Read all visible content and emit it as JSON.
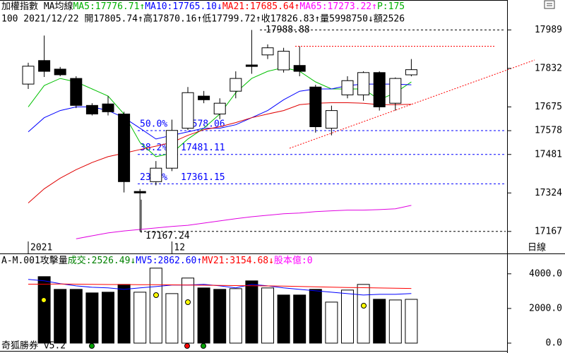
{
  "chart_data": [
    {
      "type": "candlestick",
      "header": [
        {
          "text": "加權指數 MA均線",
          "color": "#000000"
        },
        {
          "text": "MA5:17776.71↑",
          "color": "#00b000"
        },
        {
          "text": "MA10:17765.10↓",
          "color": "#0000ff"
        },
        {
          "text": "MA21:17685.64↑",
          "color": "#ff0000"
        },
        {
          "text": "MA65:17273.22↑",
          "color": "#ff00ff"
        },
        {
          "text": "P:175",
          "color": "#00b000"
        }
      ],
      "info": "100 2021/12/22 開17805.74↑高17870.16↑低17799.72↑收17826.83↑量5998750↓額2526",
      "categories": [
        "2021",
        null,
        null,
        null,
        null,
        null,
        null,
        null,
        null,
        "12",
        null,
        null,
        null,
        null,
        null,
        null,
        null,
        null,
        null,
        null,
        null,
        null,
        null,
        null,
        null
      ],
      "open": [
        17768,
        17864,
        17829,
        17791,
        17681,
        17687,
        17646,
        17330,
        17370,
        17425,
        17588,
        17719,
        17646,
        17739,
        17846,
        17887,
        17826,
        17844,
        17756,
        17588,
        17724,
        17724,
        17815,
        17690,
        17805.74
      ],
      "high": [
        17855,
        17966,
        17838,
        17800,
        17690,
        17719,
        17655,
        17340,
        17454,
        17623,
        17756,
        17740,
        17710,
        17820,
        17988.88,
        17930,
        17916,
        17922,
        17765,
        17680,
        17800,
        17820,
        17820,
        17795,
        17870.16
      ],
      "low": [
        17748,
        17797,
        17800,
        17670,
        17640,
        17640,
        17326,
        17167.24,
        17355,
        17413,
        17580,
        17690,
        17625,
        17710,
        17810,
        17870,
        17815,
        17800,
        17570,
        17559,
        17710,
        17700,
        17660,
        17660,
        17799.72
      ],
      "close": [
        17841,
        17820,
        17806,
        17681,
        17646,
        17655,
        17370,
        17324,
        17425,
        17579,
        17733,
        17704,
        17690,
        17791,
        17840,
        17916,
        17902,
        17820,
        17594,
        17660,
        17782,
        17815,
        17675,
        17791,
        17826.83
      ],
      "up_color": "#ffffff",
      "down_color": "#000000",
      "series": [
        {
          "color": "#00c000",
          "values": [
            17675,
            17762,
            17791,
            17777,
            17748,
            17719,
            17646,
            17530,
            17472,
            17486,
            17544,
            17588,
            17646,
            17733,
            17791,
            17820,
            17835,
            17820,
            17777,
            17748,
            17748,
            17748,
            17704,
            17733,
            17776.71
          ]
        },
        {
          "color": "#0000ff",
          "values": [
            17573,
            17631,
            17660,
            17675,
            17675,
            17660,
            17631,
            17588,
            17544,
            17559,
            17573,
            17588,
            17588,
            17602,
            17631,
            17660,
            17704,
            17739,
            17748,
            17748,
            17762,
            17768,
            17768,
            17768,
            17765.1
          ]
        },
        {
          "color": "#e00000",
          "values": [
            17283,
            17341,
            17384,
            17419,
            17448,
            17472,
            17486,
            17501,
            17515,
            17530,
            17559,
            17582,
            17594,
            17611,
            17631,
            17646,
            17660,
            17684,
            17690,
            17692,
            17692,
            17690,
            17684,
            17684,
            17685.64
          ]
        },
        {
          "color": "#e000e0",
          "values": [
            null,
            null,
            null,
            17137,
            17149,
            17161,
            17169,
            17175,
            17181,
            17187,
            17192,
            17201,
            17210,
            17219,
            17227,
            17233,
            17239,
            17242,
            17248,
            17251,
            17254,
            17254,
            17256,
            17259,
            17273.22
          ]
        }
      ],
      "ylim": [
        17080,
        18111
      ],
      "yticks": [
        17167,
        17324,
        17481,
        17578,
        17675,
        17832,
        17989
      ],
      "extremes": [
        17988.88,
        17167.24
      ],
      "fib": [
        {
          "label": "50.0%",
          "value": 17578.06
        },
        {
          "label": "38.2%",
          "value": 17481.11
        },
        {
          "label": "23.6%",
          "value": 17361.15
        }
      ],
      "fib_color": "#0000ff",
      "period": "日線"
    },
    {
      "type": "bar",
      "header": [
        {
          "text": "A-M.001攻擊量",
          "color": "#000000"
        },
        {
          "text": "成交:2526.49↓",
          "color": "#008000"
        },
        {
          "text": "MV5:2862.60↑",
          "color": "#0000ff"
        },
        {
          "text": "MV21:3154.68↓",
          "color": "#ff0000"
        },
        {
          "text": "股本億:0",
          "color": "#ff00ff"
        }
      ],
      "values": [
        null,
        3837,
        3102,
        3102,
        2898,
        2939,
        3388,
        2939,
        4327,
        2857,
        3755,
        3184,
        3102,
        3143,
        3592,
        3184,
        2776,
        2776,
        3102,
        2367,
        3061,
        3388,
        2531,
        2490,
        2526.49
      ],
      "fills": [
        null,
        "#000000",
        "#000000",
        "#000000",
        "#000000",
        "#000000",
        "#000000",
        "#ffffff",
        "#ffffff",
        "#ffffff",
        "#ffffff",
        "#000000",
        "#000000",
        "#ffffff",
        "#000000",
        "#ffffff",
        "#000000",
        "#000000",
        "#000000",
        "#ffffff",
        "#ffffff",
        "#ffffff",
        "#000000",
        "#ffffff",
        "#ffffff"
      ],
      "series": [
        {
          "color": "#0000ff",
          "values": [
            3673,
            3592,
            3429,
            3306,
            3224,
            3184,
            3102,
            3184,
            3265,
            3347,
            3347,
            3388,
            3306,
            3184,
            3388,
            3306,
            3184,
            3102,
            3020,
            2939,
            2857,
            2776,
            2816,
            2816,
            2862.6
          ]
        },
        {
          "color": "#ff0000",
          "values": [
            3400,
            3400,
            3410,
            3400,
            3390,
            3380,
            3380,
            3370,
            3370,
            3360,
            3350,
            3340,
            3330,
            3320,
            3310,
            3300,
            3290,
            3270,
            3250,
            3230,
            3210,
            3200,
            3180,
            3170,
            3154.68
          ]
        }
      ],
      "ylim": [
        0,
        4400
      ],
      "yticks": [
        {
          "value": 0,
          "label": "0.0"
        },
        {
          "value": 2000,
          "label": "2000.0"
        },
        {
          "value": 4000,
          "label": "4000.0"
        }
      ],
      "footer": "奇狐勝券 v5.2"
    }
  ]
}
